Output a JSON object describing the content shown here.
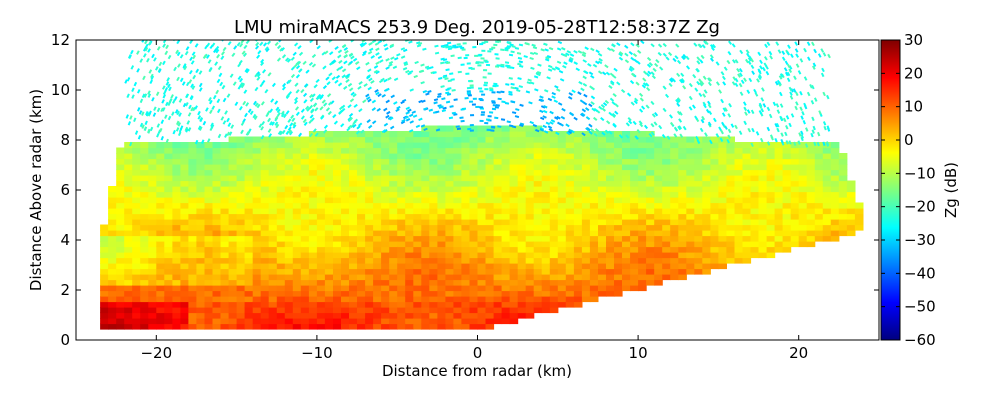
{
  "chart_data": {
    "type": "heatmap",
    "title": "LMU miraMACS 253.9 Deg. 2019-05-28T12:58:37Z  Zg",
    "xlabel": "Distance from radar (km)",
    "ylabel": "Distance Above radar  (km)",
    "xlim": [
      -25,
      25
    ],
    "ylim": [
      0,
      12
    ],
    "xticks": [
      -20,
      -10,
      0,
      10,
      20
    ],
    "yticks": [
      0,
      2,
      4,
      6,
      8,
      10,
      12
    ],
    "grid": false,
    "colorbar": {
      "label": "Zg (dB)",
      "range": [
        -60,
        30
      ],
      "ticks": [
        30,
        20,
        10,
        0,
        -10,
        -20,
        -30,
        -40,
        -50,
        -60
      ],
      "colormap": "jet"
    },
    "colormap_colors": [
      "#00007f",
      "#0000ff",
      "#007fff",
      "#00ffff",
      "#7fff7f",
      "#ffff00",
      "#ff7f00",
      "#ff0000",
      "#7f0000"
    ],
    "scan_elevation_deg": 253.9,
    "field_values_dB": {
      "low_cloud_layer_0_to_8km": [
        -15,
        15
      ],
      "high_clutter_above_8km": [
        -30,
        -20
      ],
      "near_ground_left": [
        15,
        28
      ]
    }
  }
}
